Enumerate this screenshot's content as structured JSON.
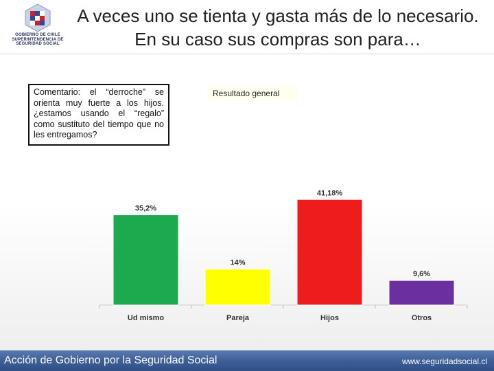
{
  "header": {
    "logo_text": [
      "GOBIERNO DE CHILE",
      "SUPERINTENDENCIA DE",
      "SEGURIDAD SOCIAL"
    ],
    "title": "A veces uno se tienta y gasta más de lo necesario.  En su caso sus compras son para…"
  },
  "comment": {
    "text": "Comentario: el “derroche” se orienta muy fuerte a los hijos. ¿estamos usando el “regalo” como sustituto del tiempo que no les entregamos?"
  },
  "result_label": "Resultado general",
  "chart_data": {
    "type": "bar",
    "title": "Resultado general",
    "categories": [
      "Ud mismo",
      "Pareja",
      "Hijos",
      "Otros"
    ],
    "values": [
      35.2,
      14,
      41.18,
      9.6
    ],
    "value_labels": [
      "35,2%",
      "14%",
      "41,18%",
      "9,6%"
    ],
    "colors": [
      "#1daa4f",
      "#ffff00",
      "#ee1c1c",
      "#6b2fa0"
    ],
    "ylim": [
      0,
      45
    ],
    "xlabel": "",
    "ylabel": "",
    "grid": false,
    "legend": "none"
  },
  "footer": {
    "left_text": "Acción de Gobierno por la Seguridad Social",
    "right_text": "www.seguridadsocial.cl"
  }
}
